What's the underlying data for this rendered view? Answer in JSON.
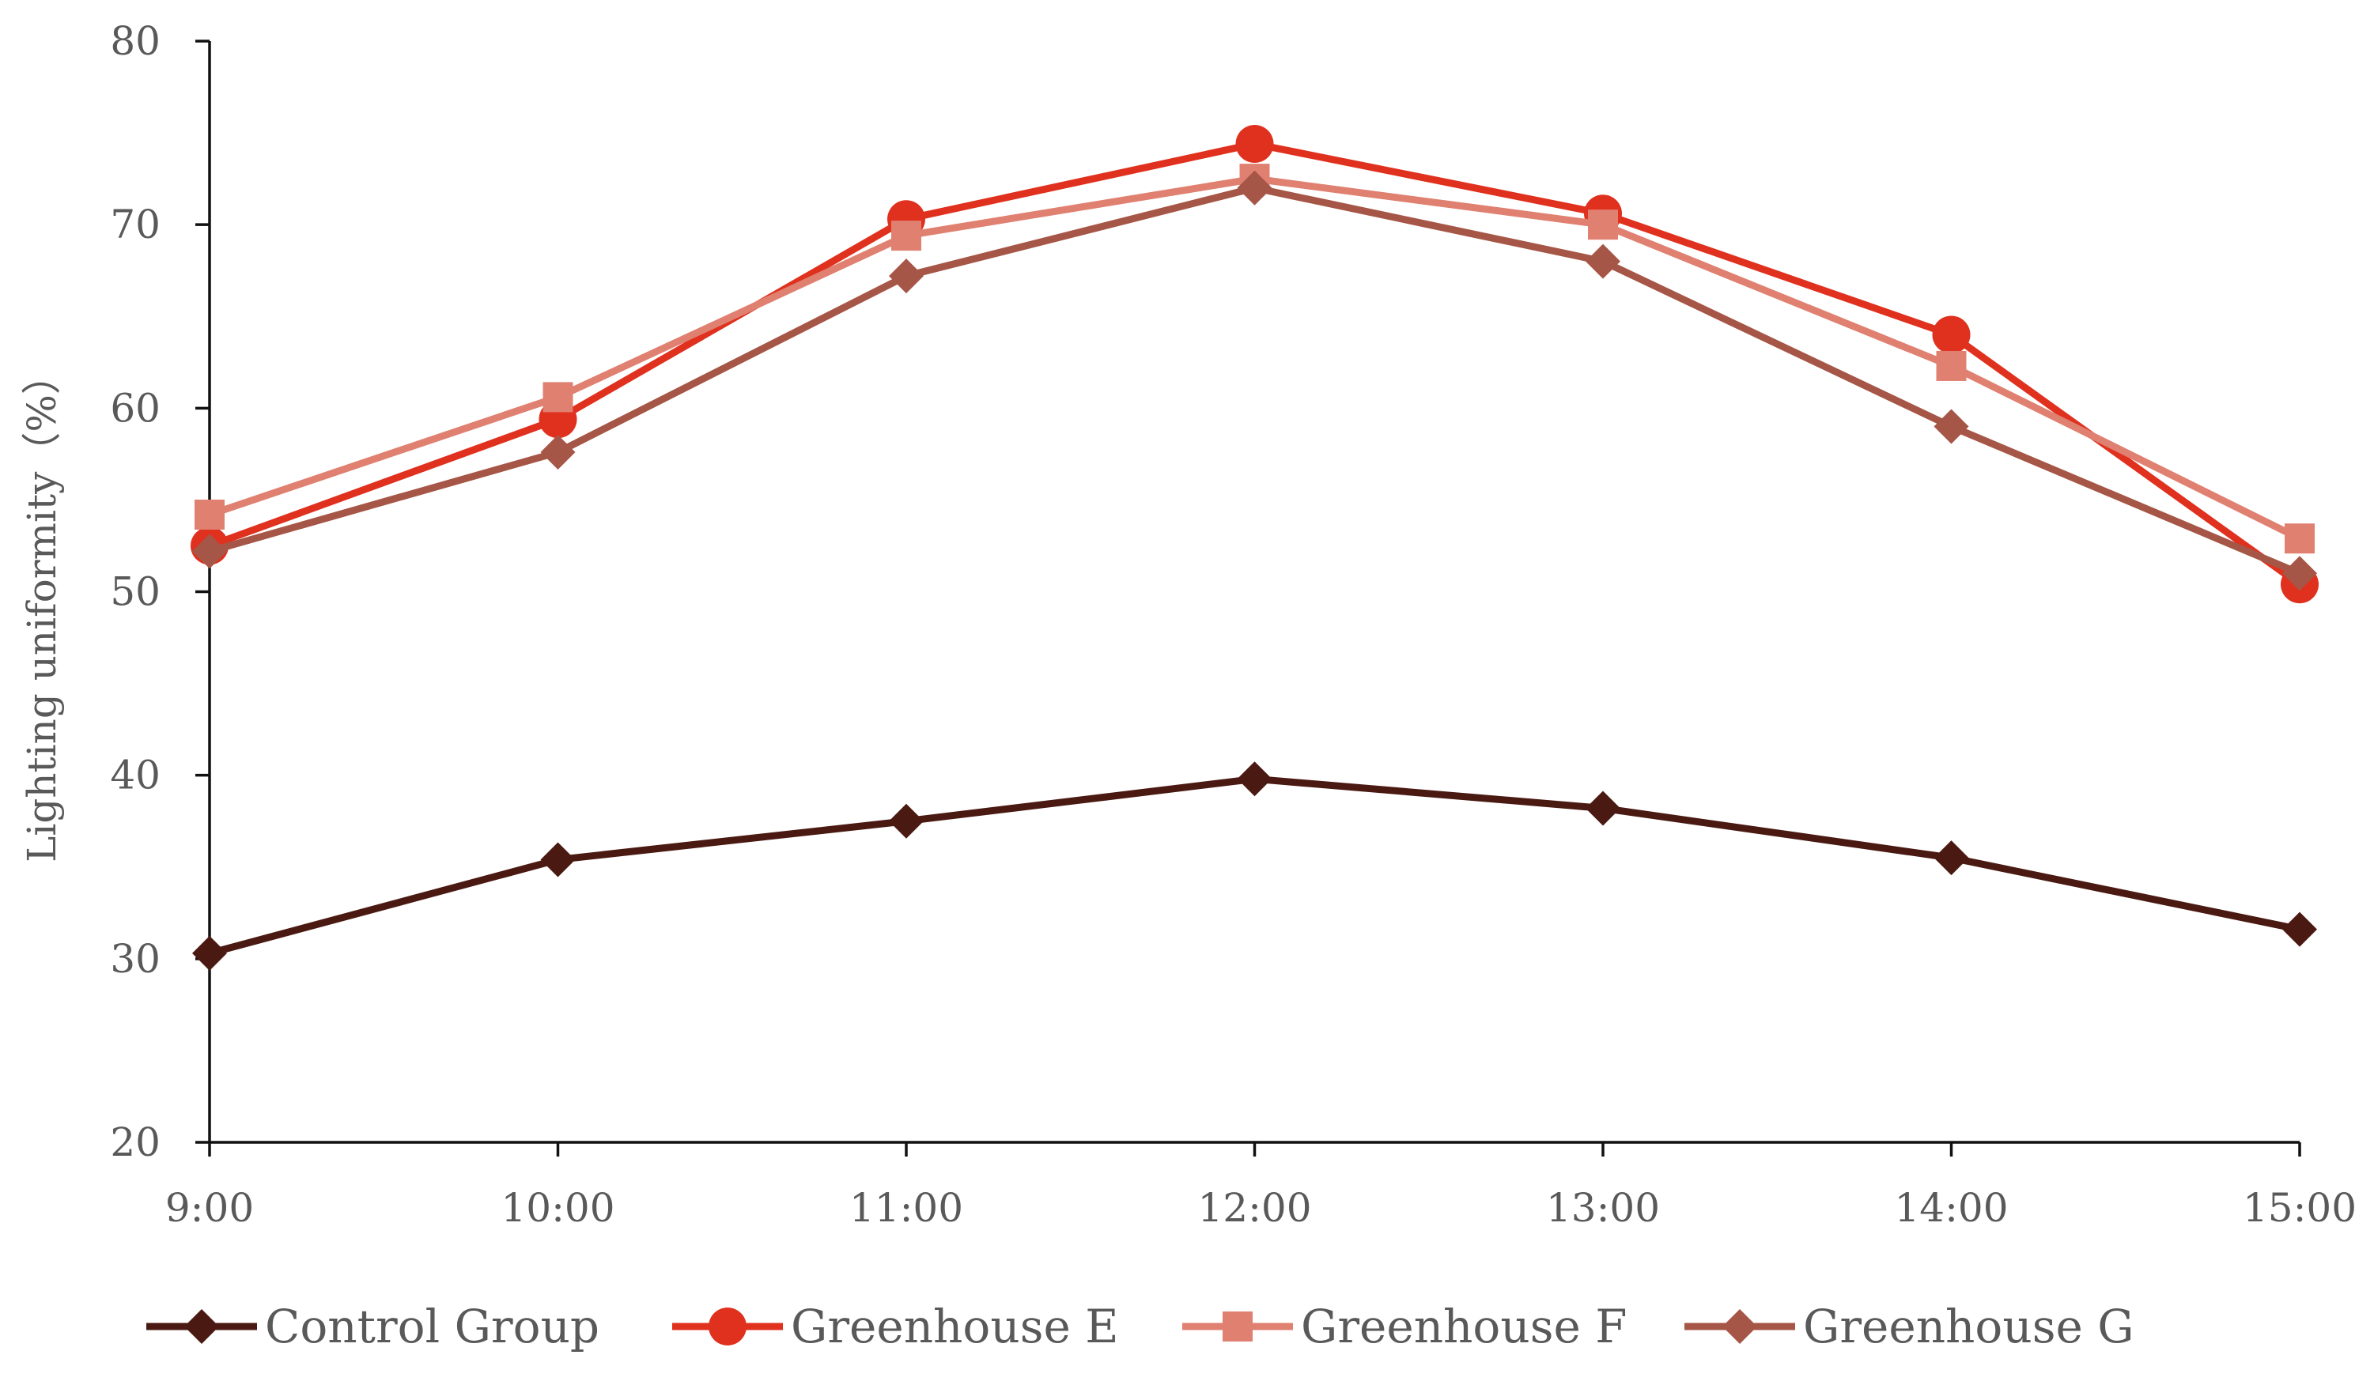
{
  "chart_data": {
    "type": "line",
    "title": "",
    "xlabel": "",
    "ylabel": "Lighting uniformity（%）",
    "ylim": [
      20,
      80
    ],
    "yticks": [
      "20",
      "30",
      "40",
      "50",
      "60",
      "70",
      "80"
    ],
    "categories": [
      "9:00",
      "10:00",
      "11:00",
      "12:00",
      "13:00",
      "14:00",
      "15:00"
    ],
    "grid": false,
    "legend": "bottom",
    "series": [
      {
        "name": "Control Group",
        "color": "#4a1a12",
        "marker": "diamond",
        "values": [
          30.3,
          35.4,
          37.5,
          39.8,
          38.2,
          35.5,
          31.6
        ]
      },
      {
        "name": "Greenhouse E",
        "color": "#e0311f",
        "marker": "circle",
        "values": [
          52.5,
          59.4,
          70.3,
          74.4,
          70.6,
          64.0,
          50.4
        ]
      },
      {
        "name": "Greenhouse F",
        "color": "#e08070",
        "marker": "square",
        "values": [
          54.2,
          60.6,
          69.4,
          72.5,
          70.0,
          62.3,
          52.9
        ]
      },
      {
        "name": "Greenhouse G",
        "color": "#a65646",
        "marker": "diamond",
        "values": [
          52.2,
          57.6,
          67.2,
          72.0,
          68.0,
          59.0,
          51.0
        ]
      }
    ]
  }
}
